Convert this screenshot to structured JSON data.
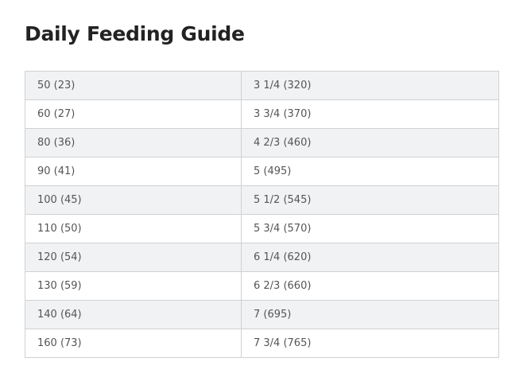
{
  "header": {
    "title": "Daily Feeding Guide"
  },
  "table": {
    "rows": [
      [
        "50 (23)",
        "3 1/4 (320)"
      ],
      [
        "60 (27)",
        "3 3/4 (370)"
      ],
      [
        "80 (36)",
        "4 2/3 (460)"
      ],
      [
        "90 (41)",
        "5 (495)"
      ],
      [
        "100 (45)",
        "5 1/2 (545)"
      ],
      [
        "110 (50)",
        "5 3/4 (570)"
      ],
      [
        "120 (54)",
        "6 1/4 (620)"
      ],
      [
        "130 (59)",
        "6 2/3 (660)"
      ],
      [
        "140 (64)",
        "7 (695)"
      ],
      [
        "160 (73)",
        "7 3/4 (765)"
      ]
    ]
  }
}
